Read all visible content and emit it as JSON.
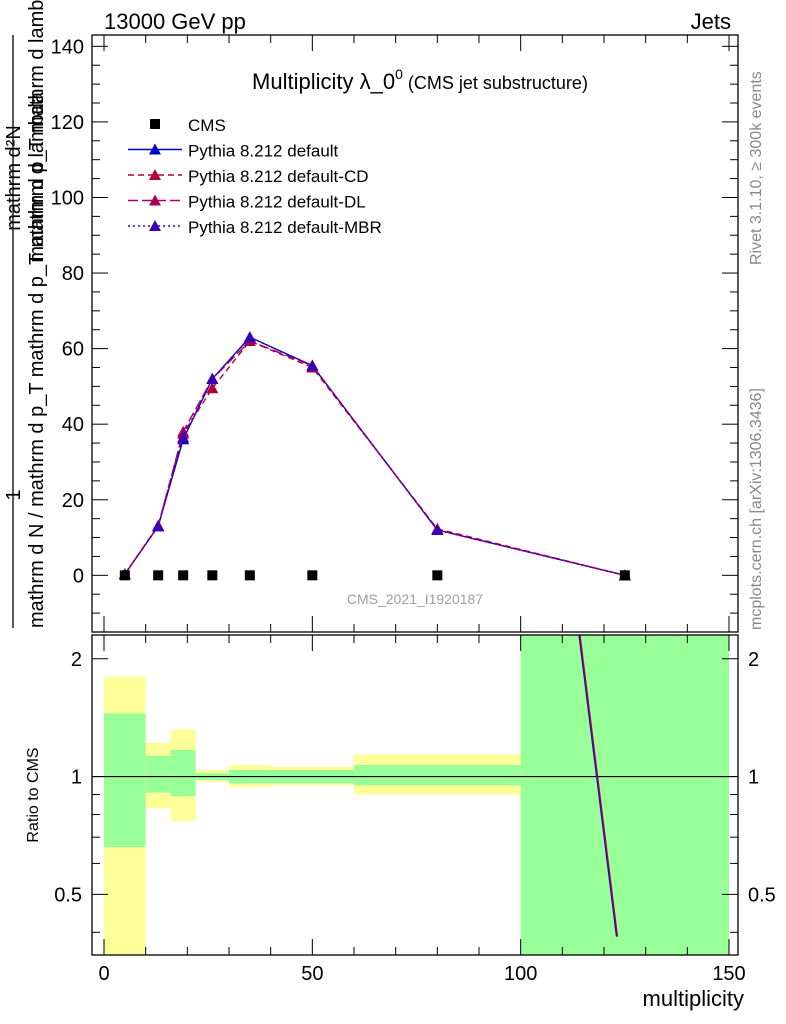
{
  "header": {
    "left": "13000 GeV pp",
    "right": "Jets"
  },
  "side_text": {
    "rivet": "Rivet 3.1.10, ≥ 300k events",
    "mcplots": "mcplots.cern.ch [arXiv:1306.3436]"
  },
  "analysis_id": "CMS_2021_I1920187",
  "chart_data": [
    {
      "type": "line",
      "title": "Multiplicity λ_0",
      "title_superscript": "0",
      "title_suffix": "(CMS jet substructure)",
      "ylabel": {
        "numerator": "1",
        "denominator": "mathrm d N / mathrm d p_T mathrm d p_T mathrm d lambda",
        "second_factor_numerator": "mathrm d²N",
        "second_factor_denominator": "mathrm d p_T mathrm d lambda"
      },
      "xlim": [
        -2,
        150
      ],
      "ylim": [
        -15,
        143
      ],
      "yticks": [
        0,
        20,
        40,
        60,
        80,
        100,
        120,
        140
      ],
      "legend_position": "top-left",
      "data_series": {
        "name": "CMS",
        "color": "#000000",
        "marker": "square",
        "x": [
          5,
          13,
          19,
          26,
          35,
          50,
          80,
          125
        ],
        "y": [
          0,
          0,
          0,
          0,
          0,
          0,
          0,
          0
        ]
      },
      "series": [
        {
          "name": "Pythia 8.212 default",
          "color": "#0000cc",
          "dash": "solid",
          "x": [
            5,
            13,
            19,
            26,
            35,
            50,
            80,
            125
          ],
          "y": [
            0.3,
            13.0,
            36.0,
            52.0,
            63.0,
            55.5,
            12.0,
            0.0
          ]
        },
        {
          "name": "Pythia 8.212 default-CD",
          "color": "#b0003c",
          "dash": "6,4",
          "x": [
            5,
            13,
            19,
            26,
            35,
            50,
            80,
            125
          ],
          "y": [
            0.3,
            13.2,
            37.5,
            49.5,
            62.0,
            55.0,
            12.3,
            0.0
          ]
        },
        {
          "name": "Pythia 8.212 default-DL",
          "color": "#a8005a",
          "dash": "10,4",
          "x": [
            5,
            13,
            19,
            26,
            35,
            50,
            80,
            125
          ],
          "y": [
            0.3,
            13.0,
            38.0,
            52.0,
            62.0,
            55.5,
            12.0,
            0.0
          ]
        },
        {
          "name": "Pythia 8.212 default-MBR",
          "color": "#3a00b8",
          "dash": "2,3",
          "x": [
            5,
            13,
            19,
            26,
            35,
            50,
            80,
            125
          ],
          "y": [
            0.3,
            13.0,
            36.5,
            52.0,
            63.0,
            55.5,
            12.0,
            0.0
          ]
        }
      ]
    },
    {
      "type": "area",
      "ylabel": "Ratio to CMS",
      "xlabel": "multiplicity",
      "xlim": [
        -2,
        150
      ],
      "ylim": [
        0.35,
        2.3
      ],
      "log_scale_y": true,
      "yticks": [
        0.5,
        1,
        2
      ],
      "xticks": [
        0,
        50,
        100,
        150
      ],
      "bands": [
        {
          "x0": 0,
          "x1": 10,
          "inner": [
            0.66,
            1.45
          ],
          "outer": [
            0.35,
            1.8
          ]
        },
        {
          "x0": 10,
          "x1": 16,
          "inner": [
            0.91,
            1.13
          ],
          "outer": [
            0.83,
            1.22
          ]
        },
        {
          "x0": 16,
          "x1": 22,
          "inner": [
            0.89,
            1.17
          ],
          "outer": [
            0.77,
            1.32
          ]
        },
        {
          "x0": 22,
          "x1": 30,
          "inner": [
            0.98,
            1.02
          ],
          "outer": [
            0.97,
            1.04
          ]
        },
        {
          "x0": 30,
          "x1": 40,
          "inner": [
            0.96,
            1.04
          ],
          "outer": [
            0.94,
            1.07
          ]
        },
        {
          "x0": 40,
          "x1": 60,
          "inner": [
            0.96,
            1.04
          ],
          "outer": [
            0.95,
            1.06
          ]
        },
        {
          "x0": 60,
          "x1": 100,
          "inner": [
            0.95,
            1.07
          ],
          "outer": [
            0.9,
            1.14
          ]
        },
        {
          "x0": 100,
          "x1": 150,
          "inner": [
            0.35,
            2.3
          ],
          "outer": [
            0.35,
            2.3
          ]
        }
      ],
      "band_colors": {
        "inner": "#99ff99",
        "outer": "#ffff99"
      },
      "reference_line": 1,
      "ratio_line": {
        "x": [
          114,
          123
        ],
        "y": [
          2.3,
          0.39
        ],
        "color": "#3a00b8",
        "shadow_color": "#b0003c"
      }
    }
  ]
}
